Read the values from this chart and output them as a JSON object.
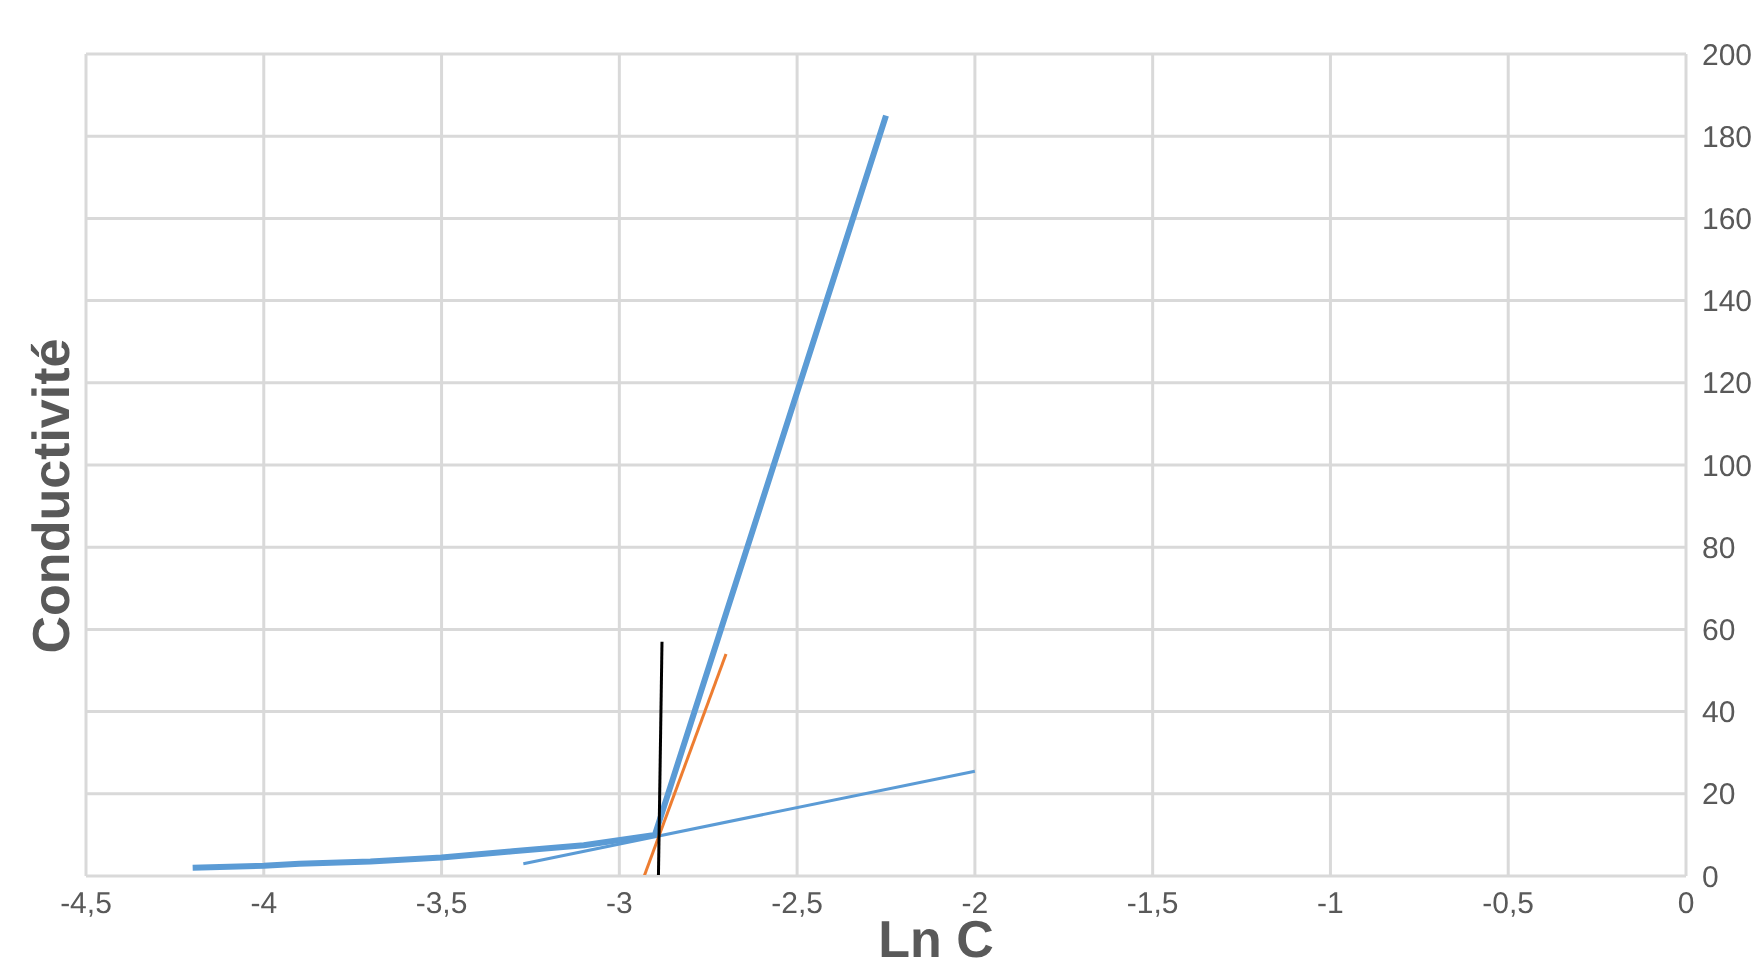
{
  "chart_data": {
    "type": "line",
    "xlabel": "Ln C",
    "ylabel": "Conductivité",
    "xlim": [
      -4.5,
      0
    ],
    "ylim": [
      0,
      200
    ],
    "xticks": [
      {
        "value": -4.5,
        "label": "-4,5"
      },
      -4,
      {
        "value": -3.5,
        "label": "-3,5"
      },
      -3,
      {
        "value": -2.5,
        "label": "-2,5"
      },
      -2,
      {
        "value": -1.5,
        "label": "-1,5"
      },
      -1,
      {
        "value": -0.5,
        "label": "-0,5"
      },
      0
    ],
    "yticks": [
      0,
      20,
      40,
      60,
      80,
      100,
      120,
      140,
      160,
      180,
      200
    ],
    "grid": true,
    "marker": "none",
    "line_style": "solid",
    "series": [
      {
        "color": "#5b9bd5",
        "x": [
          -4.2,
          -4.0,
          -3.9,
          -3.7,
          -3.5,
          -3.3,
          -3.1,
          -2.9,
          -2.25
        ],
        "values": [
          2,
          2.5,
          3,
          3.5,
          4.5,
          6,
          7.5,
          10,
          185
        ]
      },
      {
        "color": "#5b9bd5",
        "x": [
          -3.27,
          -2.0
        ],
        "values": [
          3,
          25.5
        ]
      },
      {
        "color": "#ed7d31",
        "x": [
          -2.93,
          -2.7
        ],
        "values": [
          0,
          54
        ]
      },
      {
        "color": "#000000",
        "x": [
          -2.89,
          -2.88
        ],
        "values": [
          0,
          57
        ]
      }
    ]
  }
}
